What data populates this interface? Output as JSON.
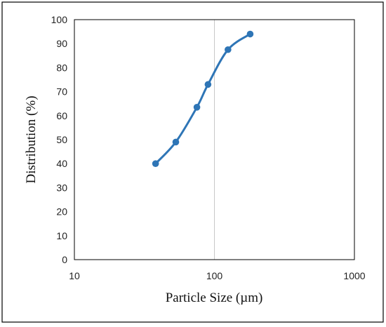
{
  "chart_data": {
    "type": "line",
    "title": "",
    "xlabel": "Particle Size (µm)",
    "ylabel": "Distribution (%)",
    "x_scale": "log",
    "xlim": [
      10,
      1000
    ],
    "ylim": [
      0,
      100
    ],
    "x_ticks": [
      10,
      100,
      1000
    ],
    "y_ticks": [
      0,
      10,
      20,
      30,
      40,
      50,
      60,
      70,
      80,
      90,
      100
    ],
    "x_tick_labels": [
      "10",
      "100",
      "1000"
    ],
    "y_tick_labels": [
      "0",
      "10",
      "20",
      "30",
      "40",
      "50",
      "60",
      "70",
      "80",
      "90",
      "100"
    ],
    "grid": "vertical major gridline only",
    "legend": "none",
    "series": [
      {
        "color": "#2E75B6",
        "marker": "circle",
        "smooth": true,
        "x": [
          38,
          53,
          75,
          90,
          125,
          180
        ],
        "y": [
          40,
          49,
          63.5,
          73,
          87.5,
          94
        ]
      }
    ]
  }
}
